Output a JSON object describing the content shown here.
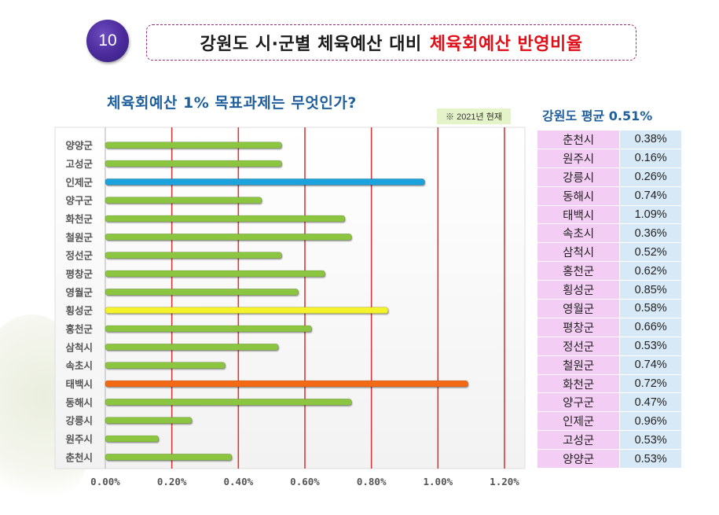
{
  "slide": {
    "number": "10",
    "title_main": "강원도 시·군별 체육예산 대비",
    "title_highlight": "체육회예산 반영비율"
  },
  "chart_title": "체육회예산 1% 목표과제는 무엇인가?",
  "note": "※ 2021년 현재",
  "colors": {
    "default_bar": "#8cc63f",
    "highlight_blue": "#1ea2dc",
    "highlight_yellow": "#f4f22a",
    "highlight_orange": "#f26b12",
    "gridline": "#d23b3b",
    "title_accent": "#e0101a",
    "title_blue": "#1f5f9b"
  },
  "chart_data": {
    "type": "bar",
    "orientation": "horizontal",
    "categories": [
      "양양군",
      "고성군",
      "인제군",
      "양구군",
      "화천군",
      "철원군",
      "정선군",
      "평창군",
      "영월군",
      "횡성군",
      "홍천군",
      "삼척시",
      "속초시",
      "태백시",
      "동해시",
      "강릉시",
      "원주시",
      "춘천시"
    ],
    "values": [
      0.53,
      0.53,
      0.96,
      0.47,
      0.72,
      0.74,
      0.53,
      0.66,
      0.58,
      0.85,
      0.62,
      0.52,
      0.36,
      1.09,
      0.74,
      0.26,
      0.16,
      0.38
    ],
    "bar_colors": [
      "#8cc63f",
      "#8cc63f",
      "#1ea2dc",
      "#8cc63f",
      "#8cc63f",
      "#8cc63f",
      "#8cc63f",
      "#8cc63f",
      "#8cc63f",
      "#f4f22a",
      "#8cc63f",
      "#8cc63f",
      "#8cc63f",
      "#f26b12",
      "#8cc63f",
      "#8cc63f",
      "#8cc63f",
      "#8cc63f"
    ],
    "xticks": [
      "0.00%",
      "0.20%",
      "0.40%",
      "0.60%",
      "0.80%",
      "1.00%",
      "1.20%"
    ],
    "xlim": [
      0,
      1.2
    ],
    "grid": true
  },
  "average": {
    "title": "강원도 평균 0.51%"
  },
  "table": [
    {
      "name": "춘천시",
      "value": "0.38%"
    },
    {
      "name": "원주시",
      "value": "0.16%"
    },
    {
      "name": "강릉시",
      "value": "0.26%"
    },
    {
      "name": "동해시",
      "value": "0.74%"
    },
    {
      "name": "태백시",
      "value": "1.09%"
    },
    {
      "name": "속초시",
      "value": "0.36%"
    },
    {
      "name": "삼척시",
      "value": "0.52%"
    },
    {
      "name": "홍천군",
      "value": "0.62%"
    },
    {
      "name": "횡성군",
      "value": "0.85%"
    },
    {
      "name": "영월군",
      "value": "0.58%"
    },
    {
      "name": "평창군",
      "value": "0.66%"
    },
    {
      "name": "정선군",
      "value": "0.53%"
    },
    {
      "name": "철원군",
      "value": "0.74%"
    },
    {
      "name": "화천군",
      "value": "0.72%"
    },
    {
      "name": "양구군",
      "value": "0.47%"
    },
    {
      "name": "인제군",
      "value": "0.96%"
    },
    {
      "name": "고성군",
      "value": "0.53%"
    },
    {
      "name": "양양군",
      "value": "0.53%"
    }
  ]
}
